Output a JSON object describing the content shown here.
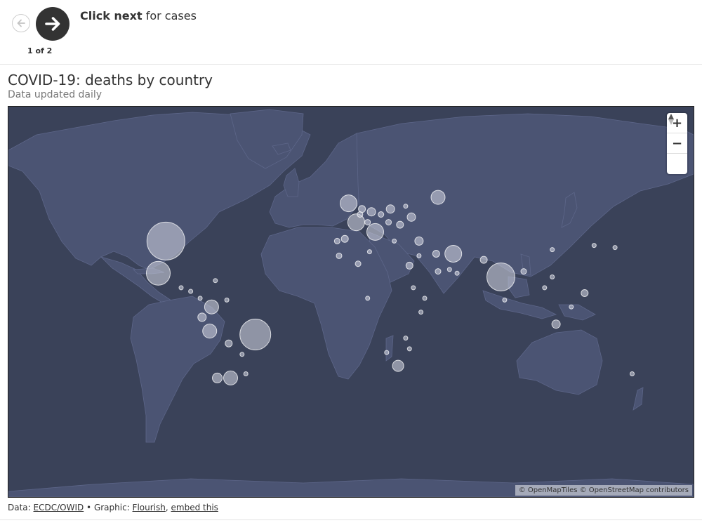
{
  "nav": {
    "prev_icon": "arrow-left-icon",
    "next_icon": "arrow-right-icon",
    "step_count": "1 of 2",
    "step_bold": "Click next",
    "step_rest": " for cases"
  },
  "header": {
    "title": "COVID-19: deaths by country",
    "subtitle": "Data updated daily"
  },
  "map": {
    "zoom_in": "+",
    "zoom_out": "−",
    "reset_icon": "compass-icon",
    "attribution": "© OpenMapTiles © OpenStreetMap contributors",
    "colors": {
      "water": "#3a4259",
      "land": "#4b5473",
      "bubble": "#c8ccd8"
    },
    "bubbles": [
      {
        "lon": -98,
        "lat": 39,
        "r": 27
      },
      {
        "lon": -102,
        "lat": 23,
        "r": 17
      },
      {
        "lon": -51,
        "lat": -12,
        "r": 22
      },
      {
        "lon": 78,
        "lat": 21,
        "r": 20
      },
      {
        "lon": -2,
        "lat": 54,
        "r": 12
      },
      {
        "lon": 2,
        "lat": 47,
        "r": 12
      },
      {
        "lon": 12,
        "lat": 43,
        "r": 12
      },
      {
        "lon": 45,
        "lat": 56,
        "r": 10
      },
      {
        "lon": 53,
        "lat": 33,
        "r": 12
      },
      {
        "lon": -75,
        "lat": -10,
        "r": 10
      },
      {
        "lon": -74,
        "lat": 4,
        "r": 10
      },
      {
        "lon": 24,
        "lat": -29,
        "r": 8
      },
      {
        "lon": -64,
        "lat": -35,
        "r": 10
      },
      {
        "lon": -71,
        "lat": -35,
        "r": 7
      },
      {
        "lon": -79,
        "lat": -2,
        "r": 6
      },
      {
        "lon": 107,
        "lat": -6,
        "r": 6
      },
      {
        "lon": 122,
        "lat": 12,
        "r": 5
      },
      {
        "lon": 20,
        "lat": 52,
        "r": 6
      },
      {
        "lon": 31,
        "lat": 49,
        "r": 6
      },
      {
        "lon": 10,
        "lat": 51,
        "r": 6
      },
      {
        "lon": 35,
        "lat": 39,
        "r": 6
      },
      {
        "lon": 5,
        "lat": 52,
        "r": 5
      },
      {
        "lon": -4,
        "lat": 40,
        "r": 5
      },
      {
        "lon": 44,
        "lat": 33,
        "r": 5
      },
      {
        "lon": 30,
        "lat": 27,
        "r": 5
      },
      {
        "lon": 69,
        "lat": 30,
        "r": 5
      },
      {
        "lon": -65,
        "lat": -17,
        "r": 5
      },
      {
        "lon": 25,
        "lat": 46,
        "r": 5
      },
      {
        "lon": 15,
        "lat": 50,
        "r": 4
      },
      {
        "lon": 19,
        "lat": 47,
        "r": 4
      },
      {
        "lon": -8,
        "lat": 39,
        "r": 4
      },
      {
        "lon": 4,
        "lat": 50,
        "r": 4
      },
      {
        "lon": 8,
        "lat": 47,
        "r": 4
      },
      {
        "lon": 45,
        "lat": 24,
        "r": 4
      },
      {
        "lon": 90,
        "lat": 24,
        "r": 4
      },
      {
        "lon": 127,
        "lat": 37,
        "r": 3
      },
      {
        "lon": 138,
        "lat": 36,
        "r": 3
      },
      {
        "lon": 105,
        "lat": 35,
        "r": 3
      },
      {
        "lon": -85,
        "lat": 13,
        "r": 3
      },
      {
        "lon": -90,
        "lat": 15,
        "r": 3
      },
      {
        "lon": -72,
        "lat": 19,
        "r": 3
      },
      {
        "lon": -80,
        "lat": 9,
        "r": 3
      },
      {
        "lon": 3,
        "lat": 28,
        "r": 4
      },
      {
        "lon": -7,
        "lat": 32,
        "r": 4
      },
      {
        "lon": 9,
        "lat": 34,
        "r": 3
      },
      {
        "lon": 32,
        "lat": 15,
        "r": 3
      },
      {
        "lon": 38,
        "lat": 9,
        "r": 3
      },
      {
        "lon": 8,
        "lat": 9,
        "r": 3
      },
      {
        "lon": 115,
        "lat": 4,
        "r": 3
      },
      {
        "lon": 101,
        "lat": 15,
        "r": 3
      },
      {
        "lon": 36,
        "lat": 1,
        "r": 3
      },
      {
        "lon": 147,
        "lat": -33,
        "r": 3
      },
      {
        "lon": 105,
        "lat": 21,
        "r": 3
      },
      {
        "lon": 22,
        "lat": 39,
        "r": 3
      },
      {
        "lon": 28,
        "lat": 53,
        "r": 3
      },
      {
        "lon": 35,
        "lat": 32,
        "r": 3
      },
      {
        "lon": 51,
        "lat": 25,
        "r": 3
      },
      {
        "lon": 55,
        "lat": 23,
        "r": 3
      },
      {
        "lon": 80,
        "lat": 8,
        "r": 3
      },
      {
        "lon": -66,
        "lat": 8,
        "r": 3
      },
      {
        "lon": -58,
        "lat": -23,
        "r": 3
      },
      {
        "lon": -56,
        "lat": -33,
        "r": 3
      },
      {
        "lon": 30,
        "lat": -20,
        "r": 3
      },
      {
        "lon": 28,
        "lat": -14,
        "r": 3
      },
      {
        "lon": 18,
        "lat": -22,
        "r": 3
      }
    ]
  },
  "footer": {
    "data_prefix": "Data: ",
    "data_link": "ECDC/OWID",
    "sep": " • Graphic: ",
    "graphic_link": "Flourish",
    "comma": ", ",
    "embed_link": "embed this"
  }
}
